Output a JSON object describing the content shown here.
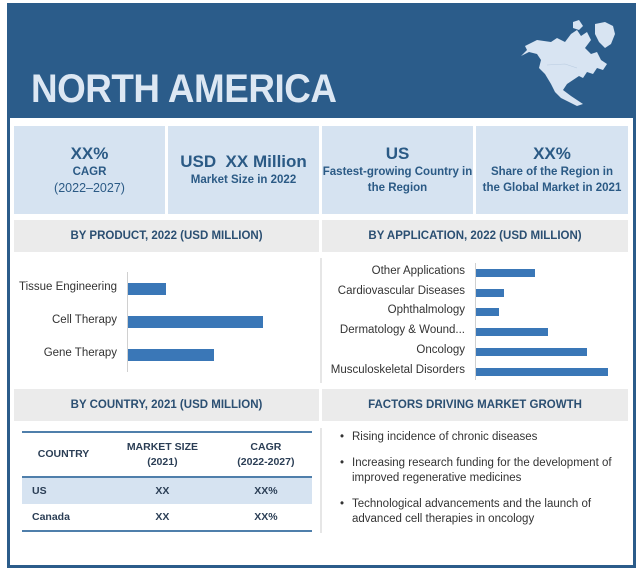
{
  "header": {
    "title": "NORTH AMERICA",
    "map_icon": "north-america-map-icon"
  },
  "kpis": [
    {
      "value": "XX%",
      "label": "CAGR",
      "sub": "(2022–2027)"
    },
    {
      "value": "USD  XX Million",
      "label": "Market Size in 2022"
    },
    {
      "value": "US",
      "label_line1": "Fastest-growing Country in",
      "label_line2": "the Region"
    },
    {
      "value": "XX%",
      "label_line1": "Share of the Region in",
      "label_line2": "the Global Market in 2021"
    }
  ],
  "sections": {
    "by_product": "BY PRODUCT, 2022 (USD MILLION)",
    "by_application": "BY APPLICATION, 2022 (USD MILLION)",
    "by_country": "BY COUNTRY, 2021 (USD MILLION)",
    "factors": "FACTORS DRIVING MARKET GROWTH"
  },
  "chart_data": [
    {
      "type": "bar",
      "orientation": "horizontal",
      "title": "BY PRODUCT, 2022 (USD MILLION)",
      "categories": [
        "Tissue Engineering",
        "Cell Therapy",
        "Gene Therapy"
      ],
      "values": [
        38,
        135,
        86
      ],
      "xlim": [
        0,
        160
      ],
      "color": "#3a77b7"
    },
    {
      "type": "bar",
      "orientation": "horizontal",
      "title": "BY APPLICATION, 2022 (USD MILLION)",
      "categories": [
        "Other Applications",
        "Cardiovascular Diseases",
        "Ophthalmology",
        "Dermatology & Wound...",
        "Oncology",
        "Musculoskeletal Disorders"
      ],
      "values": [
        59,
        28,
        23,
        72,
        111,
        132
      ],
      "xlim": [
        0,
        160
      ],
      "color": "#3a77b7"
    }
  ],
  "country_table": {
    "headers": [
      {
        "line1": "COUNTRY",
        "line2": ""
      },
      {
        "line1": "MARKET SIZE",
        "line2": "(2021)"
      },
      {
        "line1": "CAGR",
        "line2": "(2022-2027)"
      }
    ],
    "rows": [
      {
        "country": "US",
        "size": "XX",
        "cagr": "XX%"
      },
      {
        "country": "Canada",
        "size": "XX",
        "cagr": "XX%"
      }
    ]
  },
  "factors": [
    "Rising incidence of chronic diseases",
    "Increasing research funding for the development of improved regenerative medicines",
    "Technological advancements and the launch of advanced cell therapies in oncology"
  ],
  "colors": {
    "brand": "#2b5c8a",
    "kpi_bg": "#d6e3f1",
    "bar": "#3a77b7",
    "section_bg": "#ebebeb"
  }
}
